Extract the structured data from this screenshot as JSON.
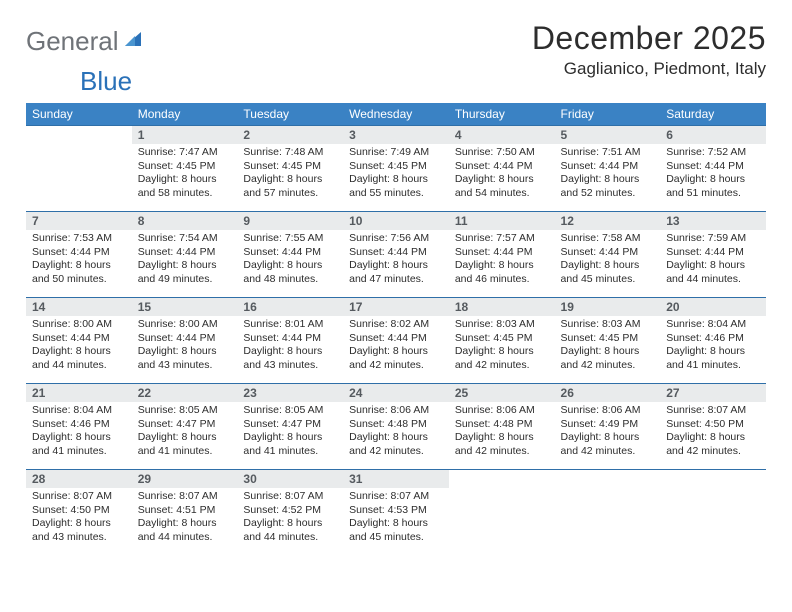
{
  "brand": {
    "part1": "General",
    "part2": "Blue"
  },
  "title": "December 2025",
  "location": "Gaglianico, Piedmont, Italy",
  "colors": {
    "header_bg": "#3a82c4",
    "header_text": "#ffffff",
    "daynum_bg": "#e9ebec",
    "row_border": "#2f6fa8",
    "brand_gray": "#6f7378",
    "brand_blue": "#2a71b8"
  },
  "weekdays": [
    "Sunday",
    "Monday",
    "Tuesday",
    "Wednesday",
    "Thursday",
    "Friday",
    "Saturday"
  ],
  "cells": [
    {
      "blank": true
    },
    {
      "day": "1",
      "sunrise": "Sunrise: 7:47 AM",
      "sunset": "Sunset: 4:45 PM",
      "day1": "Daylight: 8 hours",
      "day2": "and 58 minutes."
    },
    {
      "day": "2",
      "sunrise": "Sunrise: 7:48 AM",
      "sunset": "Sunset: 4:45 PM",
      "day1": "Daylight: 8 hours",
      "day2": "and 57 minutes."
    },
    {
      "day": "3",
      "sunrise": "Sunrise: 7:49 AM",
      "sunset": "Sunset: 4:45 PM",
      "day1": "Daylight: 8 hours",
      "day2": "and 55 minutes."
    },
    {
      "day": "4",
      "sunrise": "Sunrise: 7:50 AM",
      "sunset": "Sunset: 4:44 PM",
      "day1": "Daylight: 8 hours",
      "day2": "and 54 minutes."
    },
    {
      "day": "5",
      "sunrise": "Sunrise: 7:51 AM",
      "sunset": "Sunset: 4:44 PM",
      "day1": "Daylight: 8 hours",
      "day2": "and 52 minutes."
    },
    {
      "day": "6",
      "sunrise": "Sunrise: 7:52 AM",
      "sunset": "Sunset: 4:44 PM",
      "day1": "Daylight: 8 hours",
      "day2": "and 51 minutes."
    },
    {
      "day": "7",
      "sunrise": "Sunrise: 7:53 AM",
      "sunset": "Sunset: 4:44 PM",
      "day1": "Daylight: 8 hours",
      "day2": "and 50 minutes."
    },
    {
      "day": "8",
      "sunrise": "Sunrise: 7:54 AM",
      "sunset": "Sunset: 4:44 PM",
      "day1": "Daylight: 8 hours",
      "day2": "and 49 minutes."
    },
    {
      "day": "9",
      "sunrise": "Sunrise: 7:55 AM",
      "sunset": "Sunset: 4:44 PM",
      "day1": "Daylight: 8 hours",
      "day2": "and 48 minutes."
    },
    {
      "day": "10",
      "sunrise": "Sunrise: 7:56 AM",
      "sunset": "Sunset: 4:44 PM",
      "day1": "Daylight: 8 hours",
      "day2": "and 47 minutes."
    },
    {
      "day": "11",
      "sunrise": "Sunrise: 7:57 AM",
      "sunset": "Sunset: 4:44 PM",
      "day1": "Daylight: 8 hours",
      "day2": "and 46 minutes."
    },
    {
      "day": "12",
      "sunrise": "Sunrise: 7:58 AM",
      "sunset": "Sunset: 4:44 PM",
      "day1": "Daylight: 8 hours",
      "day2": "and 45 minutes."
    },
    {
      "day": "13",
      "sunrise": "Sunrise: 7:59 AM",
      "sunset": "Sunset: 4:44 PM",
      "day1": "Daylight: 8 hours",
      "day2": "and 44 minutes."
    },
    {
      "day": "14",
      "sunrise": "Sunrise: 8:00 AM",
      "sunset": "Sunset: 4:44 PM",
      "day1": "Daylight: 8 hours",
      "day2": "and 44 minutes."
    },
    {
      "day": "15",
      "sunrise": "Sunrise: 8:00 AM",
      "sunset": "Sunset: 4:44 PM",
      "day1": "Daylight: 8 hours",
      "day2": "and 43 minutes."
    },
    {
      "day": "16",
      "sunrise": "Sunrise: 8:01 AM",
      "sunset": "Sunset: 4:44 PM",
      "day1": "Daylight: 8 hours",
      "day2": "and 43 minutes."
    },
    {
      "day": "17",
      "sunrise": "Sunrise: 8:02 AM",
      "sunset": "Sunset: 4:44 PM",
      "day1": "Daylight: 8 hours",
      "day2": "and 42 minutes."
    },
    {
      "day": "18",
      "sunrise": "Sunrise: 8:03 AM",
      "sunset": "Sunset: 4:45 PM",
      "day1": "Daylight: 8 hours",
      "day2": "and 42 minutes."
    },
    {
      "day": "19",
      "sunrise": "Sunrise: 8:03 AM",
      "sunset": "Sunset: 4:45 PM",
      "day1": "Daylight: 8 hours",
      "day2": "and 42 minutes."
    },
    {
      "day": "20",
      "sunrise": "Sunrise: 8:04 AM",
      "sunset": "Sunset: 4:46 PM",
      "day1": "Daylight: 8 hours",
      "day2": "and 41 minutes."
    },
    {
      "day": "21",
      "sunrise": "Sunrise: 8:04 AM",
      "sunset": "Sunset: 4:46 PM",
      "day1": "Daylight: 8 hours",
      "day2": "and 41 minutes."
    },
    {
      "day": "22",
      "sunrise": "Sunrise: 8:05 AM",
      "sunset": "Sunset: 4:47 PM",
      "day1": "Daylight: 8 hours",
      "day2": "and 41 minutes."
    },
    {
      "day": "23",
      "sunrise": "Sunrise: 8:05 AM",
      "sunset": "Sunset: 4:47 PM",
      "day1": "Daylight: 8 hours",
      "day2": "and 41 minutes."
    },
    {
      "day": "24",
      "sunrise": "Sunrise: 8:06 AM",
      "sunset": "Sunset: 4:48 PM",
      "day1": "Daylight: 8 hours",
      "day2": "and 42 minutes."
    },
    {
      "day": "25",
      "sunrise": "Sunrise: 8:06 AM",
      "sunset": "Sunset: 4:48 PM",
      "day1": "Daylight: 8 hours",
      "day2": "and 42 minutes."
    },
    {
      "day": "26",
      "sunrise": "Sunrise: 8:06 AM",
      "sunset": "Sunset: 4:49 PM",
      "day1": "Daylight: 8 hours",
      "day2": "and 42 minutes."
    },
    {
      "day": "27",
      "sunrise": "Sunrise: 8:07 AM",
      "sunset": "Sunset: 4:50 PM",
      "day1": "Daylight: 8 hours",
      "day2": "and 42 minutes."
    },
    {
      "day": "28",
      "sunrise": "Sunrise: 8:07 AM",
      "sunset": "Sunset: 4:50 PM",
      "day1": "Daylight: 8 hours",
      "day2": "and 43 minutes."
    },
    {
      "day": "29",
      "sunrise": "Sunrise: 8:07 AM",
      "sunset": "Sunset: 4:51 PM",
      "day1": "Daylight: 8 hours",
      "day2": "and 44 minutes."
    },
    {
      "day": "30",
      "sunrise": "Sunrise: 8:07 AM",
      "sunset": "Sunset: 4:52 PM",
      "day1": "Daylight: 8 hours",
      "day2": "and 44 minutes."
    },
    {
      "day": "31",
      "sunrise": "Sunrise: 8:07 AM",
      "sunset": "Sunset: 4:53 PM",
      "day1": "Daylight: 8 hours",
      "day2": "and 45 minutes."
    },
    {
      "blank": true
    },
    {
      "blank": true
    },
    {
      "blank": true
    }
  ]
}
